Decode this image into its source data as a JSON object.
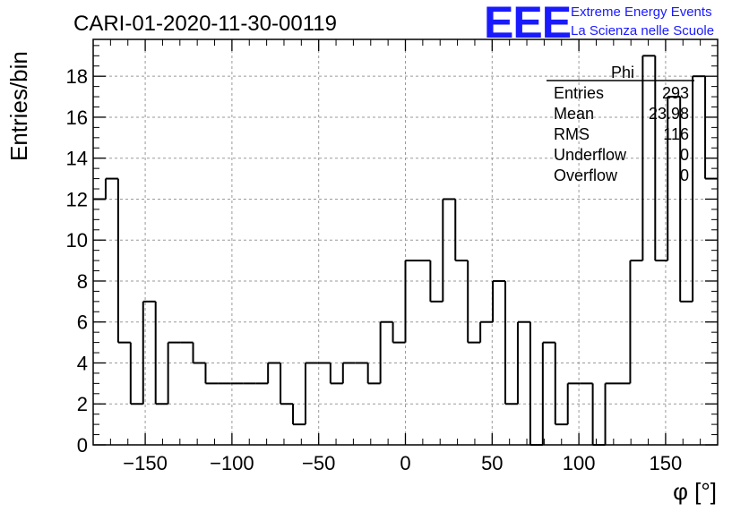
{
  "chart_data": {
    "type": "bar",
    "title": "CARI-01-2020-11-30-00119",
    "xlabel": "φ [°]",
    "ylabel": "Entries/bin",
    "xlim": [
      -180,
      180
    ],
    "ylim": [
      0,
      19.8
    ],
    "bin_width": 7.2,
    "values": [
      12,
      13,
      5,
      2,
      7,
      2,
      5,
      5,
      4,
      3,
      3,
      3,
      3,
      3,
      4,
      2,
      1,
      4,
      4,
      3,
      4,
      4,
      3,
      6,
      5,
      9,
      9,
      7,
      12,
      9,
      5,
      6,
      8,
      2,
      6,
      0,
      5,
      1,
      3,
      3,
      0,
      3,
      3,
      9,
      19,
      9,
      17,
      7,
      18,
      13
    ],
    "x_ticks": [
      -150,
      -100,
      -50,
      0,
      50,
      100,
      150
    ],
    "x_tick_labels": [
      "−150",
      "−100",
      "−50",
      "0",
      "50",
      "100",
      "150"
    ],
    "y_ticks": [
      0,
      2,
      4,
      6,
      8,
      10,
      12,
      14,
      16,
      18
    ],
    "y_tick_labels": [
      "0",
      "2",
      "4",
      "6",
      "8",
      "10",
      "12",
      "14",
      "16",
      "18"
    ],
    "grid": true,
    "stats_box": {
      "name": "Phi",
      "rows": [
        {
          "label": "Entries",
          "value": "293"
        },
        {
          "label": "Mean",
          "value": "23.98"
        },
        {
          "label": "RMS",
          "value": "116"
        },
        {
          "label": "Underflow",
          "value": "0"
        },
        {
          "label": "Overflow",
          "value": "0"
        }
      ]
    }
  },
  "logo": {
    "mark": "EEE",
    "line1": "Extreme Energy Events",
    "line2": "La Scienza nelle Scuole",
    "color": "#1a1aff"
  }
}
